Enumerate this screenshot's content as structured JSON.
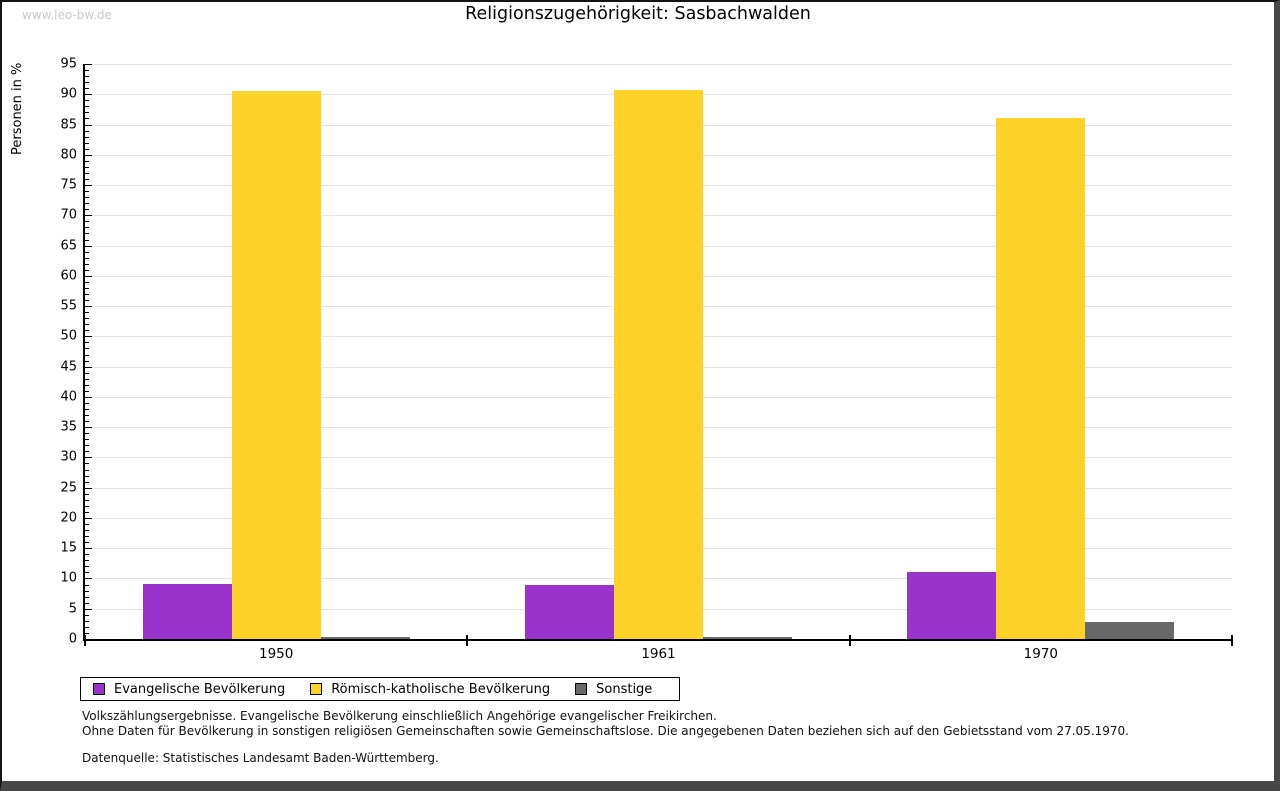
{
  "watermark": "www.leo-bw.de",
  "chart_data": {
    "type": "bar",
    "title": "Religionszugehörigkeit: Sasbachwalden",
    "categories": [
      "1950",
      "1961",
      "1970"
    ],
    "series": [
      {
        "name": "Evangelische Bevölkerung",
        "color": "#9933cc",
        "values": [
          9.1,
          8.9,
          11.1
        ]
      },
      {
        "name": "Römisch-katholische Bevölkerung",
        "color": "#fdd32a",
        "values": [
          90.6,
          90.7,
          86.1
        ]
      },
      {
        "name": "Sonstige",
        "color": "#686868",
        "values": [
          0.3,
          0.3,
          2.8
        ]
      }
    ],
    "ylabel": "Personen in %",
    "ylim": [
      0,
      95
    ],
    "ytick_step": 5,
    "minor_tick_step": 1,
    "grid": true,
    "legend_position": "bottom"
  },
  "footer": {
    "line1": "Volkszählungsergebnisse. Evangelische Bevölkerung einschließlich Angehörige evangelischer Freikirchen.",
    "line2": "Ohne Daten für Bevölkerung in sonstigen religiösen Gemeinschaften sowie Gemeinschaftslose. Die angegebenen Daten beziehen sich auf den Gebietsstand vom 27.05.1970.",
    "source": "Datenquelle: Statistisches Landesamt Baden-Württemberg."
  }
}
